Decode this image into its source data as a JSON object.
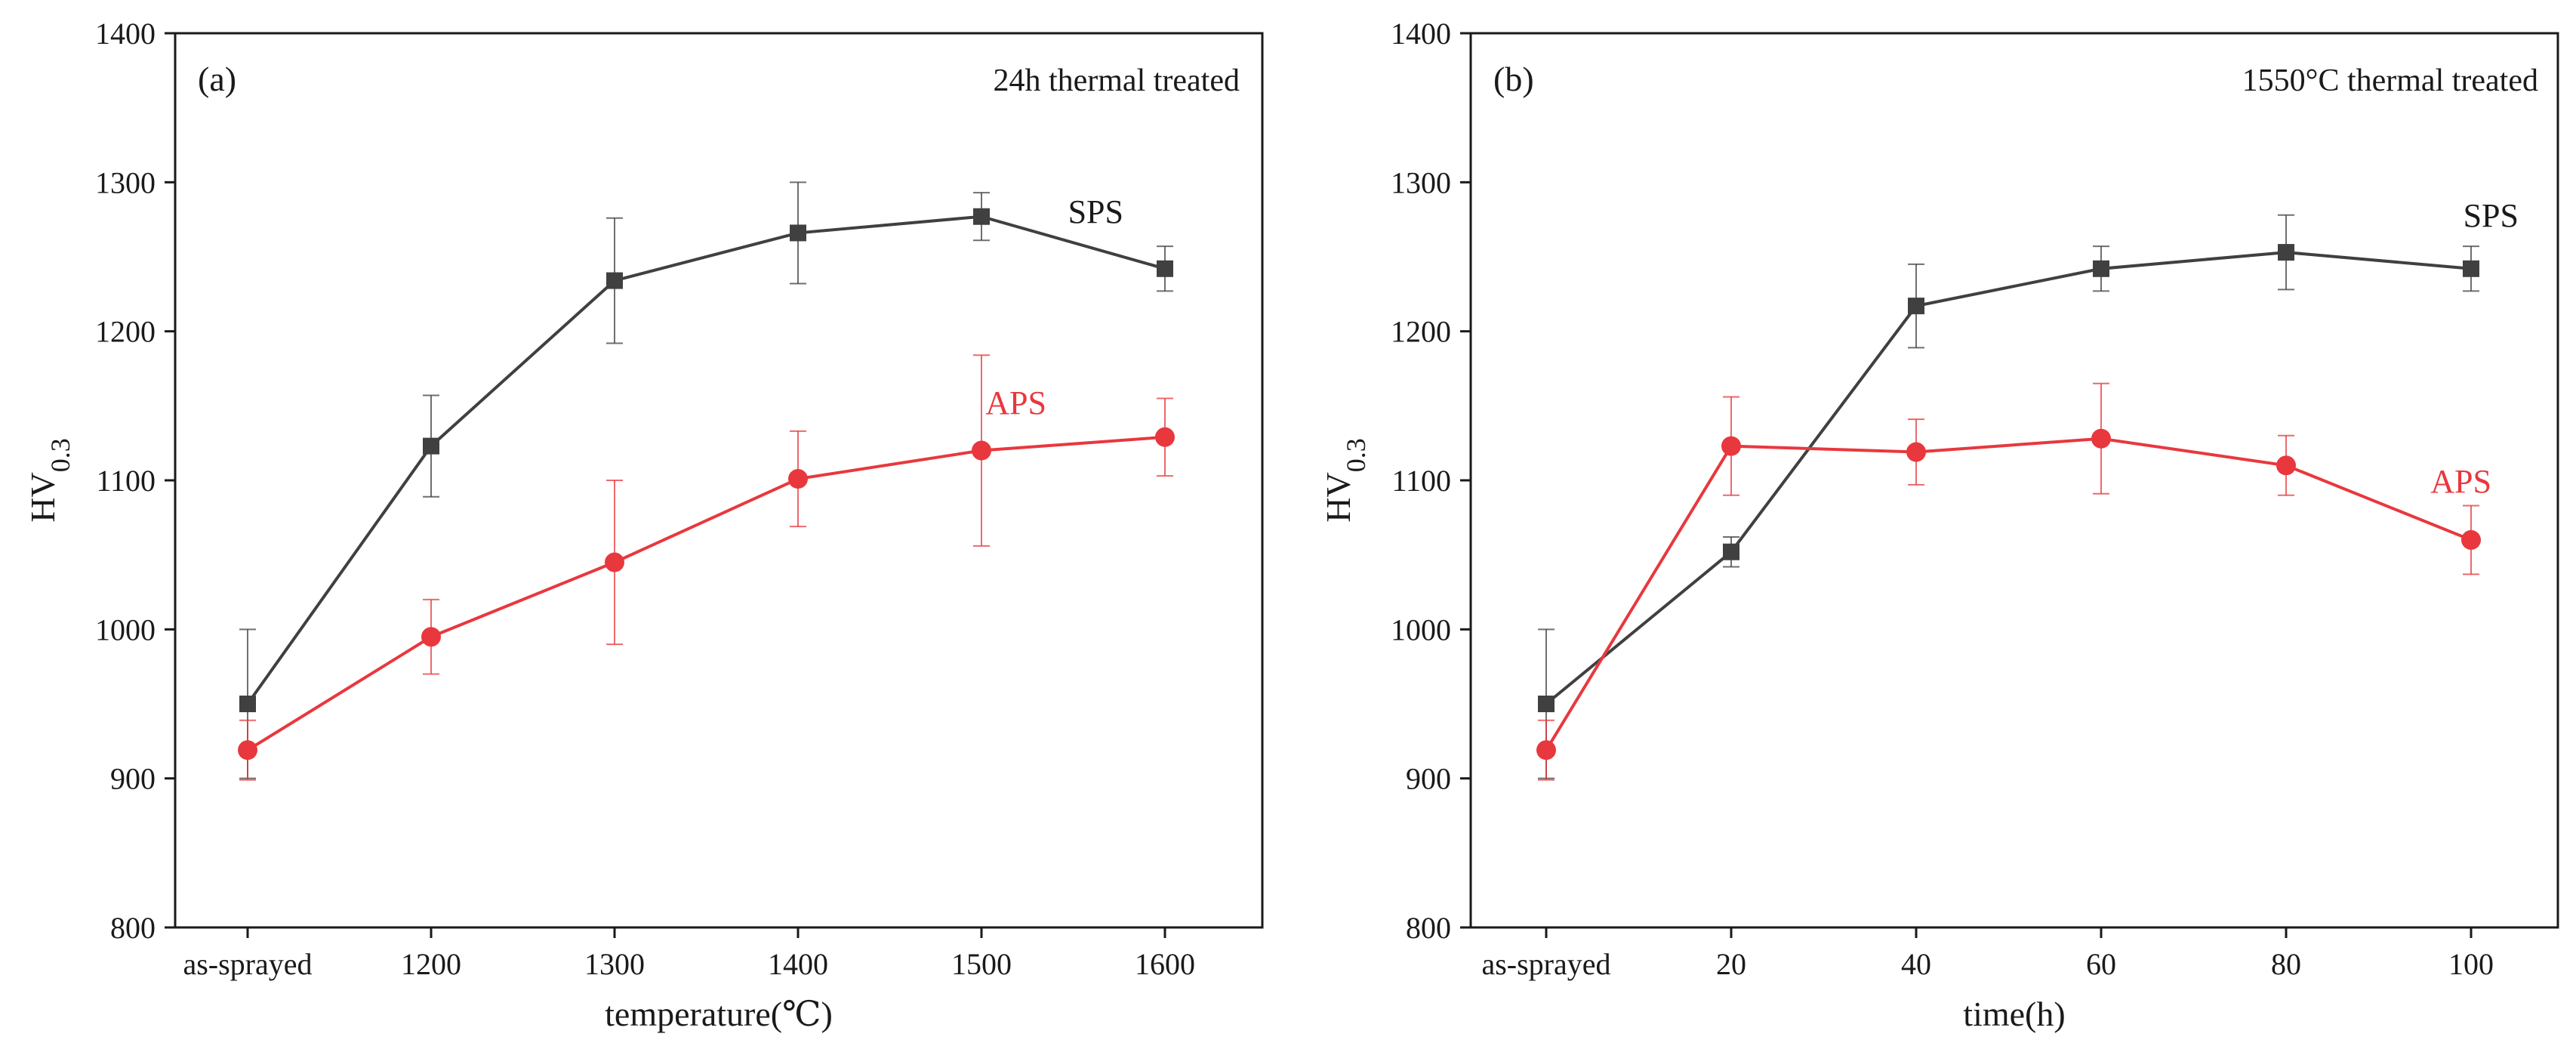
{
  "chart_data": [
    {
      "type": "line",
      "panel_tag": "(a)",
      "annotation": "24h thermal treated",
      "xlabel": "temperature(℃)",
      "ylabel_main": "HV",
      "ylabel_sub": "0.3",
      "categories": [
        "as-sprayed",
        "1200",
        "1300",
        "1400",
        "1500",
        "1600"
      ],
      "ylim": [
        800,
        1400
      ],
      "yticks": [
        "800",
        "900",
        "1000",
        "1100",
        "1200",
        "1300",
        "1400"
      ],
      "series": [
        {
          "name": "SPS",
          "color": "#404040",
          "marker": "square",
          "values": [
            950,
            1123,
            1234,
            1266,
            1277,
            1242
          ],
          "errors": [
            50,
            34,
            42,
            34,
            16,
            15
          ]
        },
        {
          "name": "APS",
          "color": "#e8383d",
          "marker": "circle",
          "values": [
            919,
            995,
            1045,
            1101,
            1120,
            1129
          ],
          "errors": [
            20,
            25,
            55,
            32,
            64,
            26
          ]
        }
      ]
    },
    {
      "type": "line",
      "panel_tag": "(b)",
      "annotation": "1550°C thermal treated",
      "xlabel": "time(h)",
      "ylabel_main": "HV",
      "ylabel_sub": "0.3",
      "categories": [
        "as-sprayed",
        "20",
        "40",
        "60",
        "80",
        "100"
      ],
      "ylim": [
        800,
        1400
      ],
      "yticks": [
        "800",
        "900",
        "1000",
        "1100",
        "1200",
        "1300",
        "1400"
      ],
      "series": [
        {
          "name": "SPS",
          "color": "#404040",
          "marker": "square",
          "values": [
            950,
            1052,
            1217,
            1242,
            1253,
            1242
          ],
          "errors": [
            50,
            10,
            28,
            15,
            25,
            15
          ]
        },
        {
          "name": "APS",
          "color": "#e8383d",
          "marker": "circle",
          "values": [
            919,
            1123,
            1119,
            1128,
            1110,
            1060
          ],
          "errors": [
            20,
            33,
            22,
            37,
            20,
            23
          ]
        }
      ]
    }
  ]
}
